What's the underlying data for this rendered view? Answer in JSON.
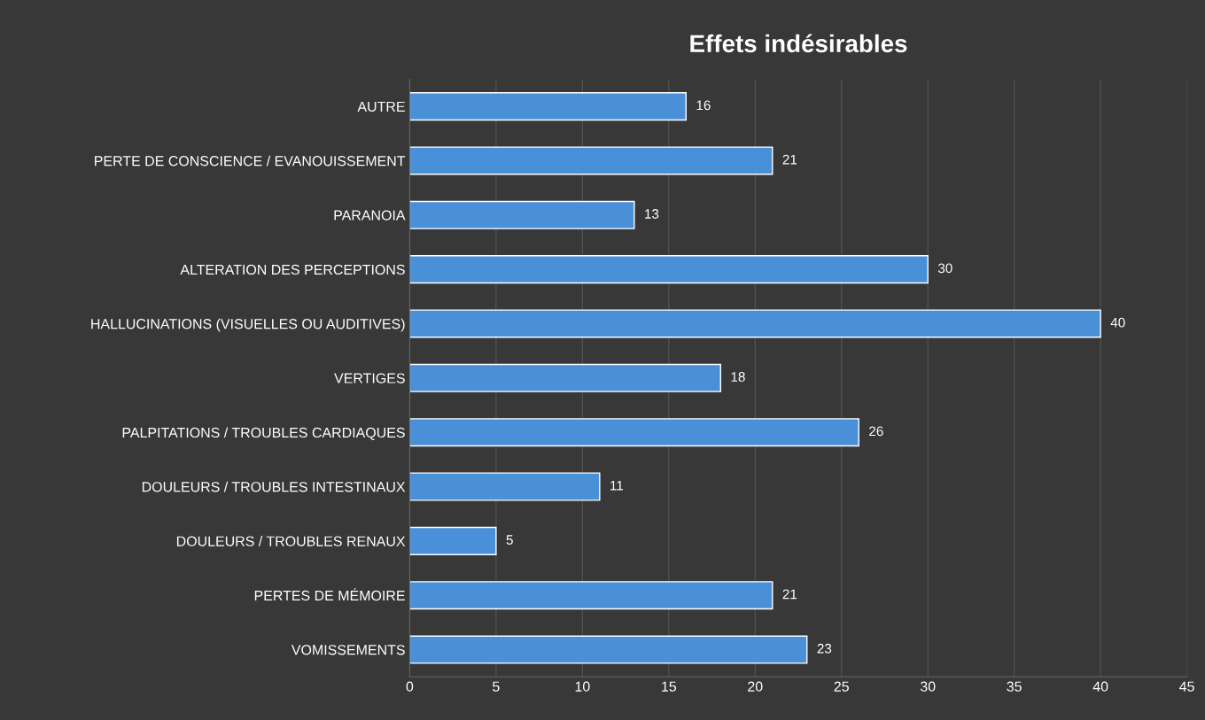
{
  "chart_data": {
    "type": "bar",
    "orientation": "horizontal",
    "title": "Effets indésirables",
    "categories": [
      "AUTRE",
      "PERTE DE CONSCIENCE / EVANOUISSEMENT",
      "PARANOIA",
      "ALTERATION DES PERCEPTIONS",
      "HALLUCINATIONS (VISUELLES OU AUDITIVES)",
      "VERTIGES",
      "PALPITATIONS / TROUBLES CARDIAQUES",
      "DOULEURS / TROUBLES INTESTINAUX",
      "DOULEURS / TROUBLES RENAUX",
      "PERTES DE MÉMOIRE",
      "VOMISSEMENTS"
    ],
    "values": [
      16,
      21,
      13,
      30,
      40,
      18,
      26,
      11,
      5,
      21,
      23
    ],
    "color": "#4a90d9",
    "xlim": [
      0,
      45
    ],
    "xticks": [
      0,
      5,
      10,
      15,
      20,
      25,
      30,
      35,
      40,
      45
    ],
    "grid": "x",
    "data_labels": true
  }
}
